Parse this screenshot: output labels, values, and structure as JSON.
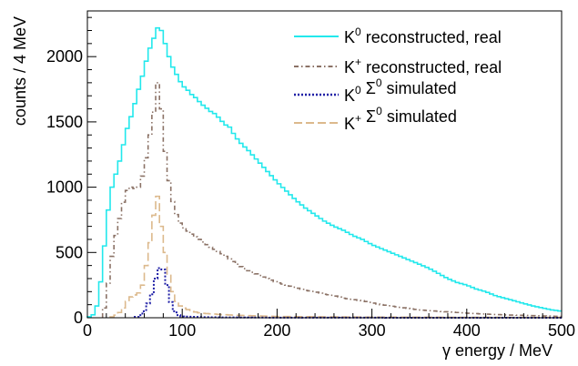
{
  "chart_data": {
    "type": "line",
    "title": "",
    "xlabel": "γ energy / MeV",
    "ylabel": "counts / 4 MeV",
    "xlim": [
      0,
      500
    ],
    "ylim": [
      0,
      2350
    ],
    "x_ticks": [
      0,
      100,
      200,
      300,
      400,
      500
    ],
    "y_ticks": [
      0,
      500,
      1000,
      1500,
      2000
    ],
    "grid": false,
    "legend_position": "top-right",
    "legend": [
      {
        "main": "K",
        "sup": "0",
        "sub": "",
        "rest": " reconstructed, real",
        "sigma": false
      },
      {
        "main": "K",
        "sup": "+",
        "sub": "",
        "rest": " reconstructed, real",
        "sigma": false
      },
      {
        "main": "K",
        "sup": "0",
        "sub": "",
        "rest": " simulated",
        "sigma": true
      },
      {
        "main": "K",
        "sup": "+",
        "sub": "",
        "rest": " simulated",
        "sigma": true
      }
    ],
    "series": [
      {
        "key": "k0_real",
        "color": "#22e8ec",
        "style": "solid",
        "points": [
          [
            0,
            0
          ],
          [
            8,
            30
          ],
          [
            12,
            150
          ],
          [
            16,
            400
          ],
          [
            20,
            700
          ],
          [
            24,
            950
          ],
          [
            28,
            1050
          ],
          [
            32,
            1150
          ],
          [
            36,
            1250
          ],
          [
            40,
            1400
          ],
          [
            44,
            1500
          ],
          [
            48,
            1580
          ],
          [
            52,
            1700
          ],
          [
            56,
            1800
          ],
          [
            60,
            1900
          ],
          [
            64,
            2030
          ],
          [
            68,
            2100
          ],
          [
            72,
            2180
          ],
          [
            74,
            2220
          ],
          [
            78,
            2200
          ],
          [
            82,
            2100
          ],
          [
            86,
            2000
          ],
          [
            90,
            1920
          ],
          [
            95,
            1850
          ],
          [
            100,
            1780
          ],
          [
            105,
            1750
          ],
          [
            110,
            1710
          ],
          [
            115,
            1680
          ],
          [
            120,
            1640
          ],
          [
            125,
            1610
          ],
          [
            130,
            1580
          ],
          [
            135,
            1560
          ],
          [
            140,
            1520
          ],
          [
            145,
            1480
          ],
          [
            150,
            1460
          ],
          [
            155,
            1400
          ],
          [
            160,
            1350
          ],
          [
            170,
            1280
          ],
          [
            180,
            1200
          ],
          [
            190,
            1120
          ],
          [
            200,
            1040
          ],
          [
            210,
            970
          ],
          [
            220,
            900
          ],
          [
            230,
            840
          ],
          [
            240,
            790
          ],
          [
            250,
            740
          ],
          [
            260,
            700
          ],
          [
            270,
            670
          ],
          [
            280,
            630
          ],
          [
            290,
            600
          ],
          [
            300,
            560
          ],
          [
            310,
            530
          ],
          [
            320,
            500
          ],
          [
            330,
            470
          ],
          [
            340,
            440
          ],
          [
            350,
            410
          ],
          [
            360,
            380
          ],
          [
            370,
            340
          ],
          [
            380,
            300
          ],
          [
            390,
            270
          ],
          [
            400,
            250
          ],
          [
            410,
            220
          ],
          [
            420,
            200
          ],
          [
            430,
            170
          ],
          [
            440,
            150
          ],
          [
            450,
            130
          ],
          [
            460,
            110
          ],
          [
            470,
            90
          ],
          [
            480,
            75
          ],
          [
            490,
            60
          ],
          [
            500,
            50
          ]
        ]
      },
      {
        "key": "kplus_real",
        "color": "#8b7266",
        "style": "dashdot",
        "points": [
          [
            16,
            0
          ],
          [
            20,
            150
          ],
          [
            24,
            380
          ],
          [
            28,
            560
          ],
          [
            32,
            700
          ],
          [
            36,
            820
          ],
          [
            40,
            950
          ],
          [
            44,
            1000
          ],
          [
            48,
            1000
          ],
          [
            52,
            980
          ],
          [
            56,
            1020
          ],
          [
            60,
            1150
          ],
          [
            64,
            1300
          ],
          [
            68,
            1500
          ],
          [
            72,
            1650
          ],
          [
            74,
            1800
          ],
          [
            76,
            1780
          ],
          [
            78,
            1600
          ],
          [
            80,
            1400
          ],
          [
            84,
            1150
          ],
          [
            88,
            950
          ],
          [
            92,
            830
          ],
          [
            96,
            750
          ],
          [
            100,
            700
          ],
          [
            110,
            640
          ],
          [
            120,
            590
          ],
          [
            130,
            540
          ],
          [
            140,
            500
          ],
          [
            150,
            450
          ],
          [
            160,
            400
          ],
          [
            170,
            360
          ],
          [
            180,
            330
          ],
          [
            190,
            300
          ],
          [
            200,
            270
          ],
          [
            210,
            250
          ],
          [
            220,
            230
          ],
          [
            230,
            210
          ],
          [
            240,
            200
          ],
          [
            250,
            180
          ],
          [
            260,
            170
          ],
          [
            270,
            150
          ],
          [
            280,
            140
          ],
          [
            290,
            130
          ],
          [
            300,
            115
          ],
          [
            310,
            100
          ],
          [
            320,
            90
          ],
          [
            330,
            80
          ],
          [
            340,
            70
          ],
          [
            350,
            60
          ],
          [
            360,
            55
          ],
          [
            370,
            50
          ],
          [
            380,
            45
          ],
          [
            390,
            40
          ],
          [
            400,
            35
          ],
          [
            420,
            28
          ],
          [
            440,
            22
          ],
          [
            460,
            18
          ],
          [
            480,
            14
          ],
          [
            500,
            10
          ]
        ]
      },
      {
        "key": "k0_sigma_sim",
        "color": "#1e1ea6",
        "style": "dotted",
        "points": [
          [
            50,
            0
          ],
          [
            56,
            20
          ],
          [
            60,
            50
          ],
          [
            64,
            110
          ],
          [
            68,
            180
          ],
          [
            72,
            300
          ],
          [
            76,
            380
          ],
          [
            80,
            370
          ],
          [
            84,
            250
          ],
          [
            88,
            120
          ],
          [
            92,
            50
          ],
          [
            96,
            20
          ],
          [
            100,
            10
          ],
          [
            120,
            5
          ],
          [
            140,
            3
          ],
          [
            160,
            2
          ],
          [
            200,
            1
          ],
          [
            300,
            0.5
          ],
          [
            400,
            0.2
          ],
          [
            500,
            0
          ]
        ]
      },
      {
        "key": "kplus_sigma_sim",
        "color": "#dcb98c",
        "style": "dashed",
        "points": [
          [
            24,
            0
          ],
          [
            30,
            20
          ],
          [
            36,
            50
          ],
          [
            40,
            100
          ],
          [
            44,
            150
          ],
          [
            48,
            170
          ],
          [
            52,
            180
          ],
          [
            56,
            200
          ],
          [
            60,
            300
          ],
          [
            64,
            500
          ],
          [
            68,
            650
          ],
          [
            72,
            920
          ],
          [
            74,
            930
          ],
          [
            76,
            800
          ],
          [
            78,
            700
          ],
          [
            80,
            600
          ],
          [
            84,
            400
          ],
          [
            88,
            250
          ],
          [
            92,
            150
          ],
          [
            96,
            100
          ],
          [
            100,
            80
          ],
          [
            110,
            50
          ],
          [
            120,
            35
          ],
          [
            140,
            25
          ],
          [
            160,
            18
          ],
          [
            180,
            14
          ],
          [
            200,
            10
          ],
          [
            250,
            7
          ],
          [
            300,
            5
          ],
          [
            400,
            3
          ],
          [
            500,
            2
          ]
        ]
      }
    ]
  }
}
